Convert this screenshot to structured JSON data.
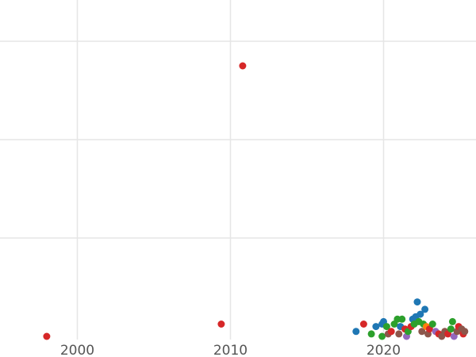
{
  "chart_data": {
    "type": "scatter",
    "title": "",
    "xlabel": "",
    "ylabel": "",
    "xlim": [
      1995,
      2027
    ],
    "ylim": [
      0,
      14
    ],
    "x_ticks": [
      2000,
      2010,
      2020
    ],
    "x_tick_labels": [
      "2000",
      "2010",
      "2020"
    ],
    "grid": true,
    "legend": "none",
    "colors": {
      "blue": "#1f77b4",
      "green": "#2ca02c",
      "red": "#d62728",
      "orange": "#ff7f0e",
      "purple": "#9467bd",
      "brown": "#8c564b"
    },
    "points": [
      {
        "x": 1998.0,
        "y": 0.0,
        "color": "#d62728"
      },
      {
        "x": 2009.4,
        "y": 0.5,
        "color": "#d62728"
      },
      {
        "x": 2010.8,
        "y": 11.0,
        "color": "#d62728"
      },
      {
        "x": 2018.2,
        "y": 0.2,
        "color": "#1f77b4"
      },
      {
        "x": 2018.7,
        "y": 0.5,
        "color": "#d62728"
      },
      {
        "x": 2019.2,
        "y": 0.1,
        "color": "#2ca02c"
      },
      {
        "x": 2019.5,
        "y": 0.4,
        "color": "#1f77b4"
      },
      {
        "x": 2019.9,
        "y": 0.5,
        "color": "#1f77b4"
      },
      {
        "x": 2020.0,
        "y": 0.6,
        "color": "#1f77b4"
      },
      {
        "x": 2020.2,
        "y": 0.4,
        "color": "#2ca02c"
      },
      {
        "x": 2019.9,
        "y": 0.0,
        "color": "#2ca02c"
      },
      {
        "x": 2020.3,
        "y": 0.1,
        "color": "#8c564b"
      },
      {
        "x": 2020.5,
        "y": 0.2,
        "color": "#d62728"
      },
      {
        "x": 2020.7,
        "y": 0.5,
        "color": "#2ca02c"
      },
      {
        "x": 2020.9,
        "y": 0.7,
        "color": "#2ca02c"
      },
      {
        "x": 2021.1,
        "y": 0.4,
        "color": "#1f77b4"
      },
      {
        "x": 2021.2,
        "y": 0.7,
        "color": "#2ca02c"
      },
      {
        "x": 2021.0,
        "y": 0.1,
        "color": "#8c564b"
      },
      {
        "x": 2021.4,
        "y": 0.3,
        "color": "#d62728"
      },
      {
        "x": 2021.5,
        "y": 0.0,
        "color": "#9467bd"
      },
      {
        "x": 2021.6,
        "y": 0.2,
        "color": "#2ca02c"
      },
      {
        "x": 2021.8,
        "y": 0.4,
        "color": "#d62728"
      },
      {
        "x": 2021.9,
        "y": 0.7,
        "color": "#1f77b4"
      },
      {
        "x": 2022.0,
        "y": 0.5,
        "color": "#2ca02c"
      },
      {
        "x": 2022.1,
        "y": 0.8,
        "color": "#1f77b4"
      },
      {
        "x": 2022.2,
        "y": 1.4,
        "color": "#1f77b4"
      },
      {
        "x": 2022.3,
        "y": 0.6,
        "color": "#2ca02c"
      },
      {
        "x": 2022.4,
        "y": 0.9,
        "color": "#1f77b4"
      },
      {
        "x": 2022.5,
        "y": 0.2,
        "color": "#8c564b"
      },
      {
        "x": 2022.6,
        "y": 0.5,
        "color": "#2ca02c"
      },
      {
        "x": 2022.7,
        "y": 1.1,
        "color": "#1f77b4"
      },
      {
        "x": 2022.8,
        "y": 0.4,
        "color": "#ff7f0e"
      },
      {
        "x": 2022.9,
        "y": 0.1,
        "color": "#8c564b"
      },
      {
        "x": 2023.0,
        "y": 0.3,
        "color": "#d62728"
      },
      {
        "x": 2023.2,
        "y": 0.5,
        "color": "#2ca02c"
      },
      {
        "x": 2023.4,
        "y": 0.2,
        "color": "#9467bd"
      },
      {
        "x": 2023.6,
        "y": 0.1,
        "color": "#d62728"
      },
      {
        "x": 2023.8,
        "y": 0.0,
        "color": "#8c564b"
      },
      {
        "x": 2024.0,
        "y": 0.2,
        "color": "#8c564b"
      },
      {
        "x": 2024.2,
        "y": 0.1,
        "color": "#d62728"
      },
      {
        "x": 2024.4,
        "y": 0.3,
        "color": "#2ca02c"
      },
      {
        "x": 2024.5,
        "y": 0.6,
        "color": "#2ca02c"
      },
      {
        "x": 2024.6,
        "y": 0.0,
        "color": "#9467bd"
      },
      {
        "x": 2024.8,
        "y": 0.2,
        "color": "#8c564b"
      },
      {
        "x": 2024.9,
        "y": 0.4,
        "color": "#d62728"
      },
      {
        "x": 2025.1,
        "y": 0.3,
        "color": "#8c564b"
      },
      {
        "x": 2025.2,
        "y": 0.1,
        "color": "#d62728"
      },
      {
        "x": 2025.3,
        "y": 0.2,
        "color": "#8c564b"
      }
    ]
  }
}
